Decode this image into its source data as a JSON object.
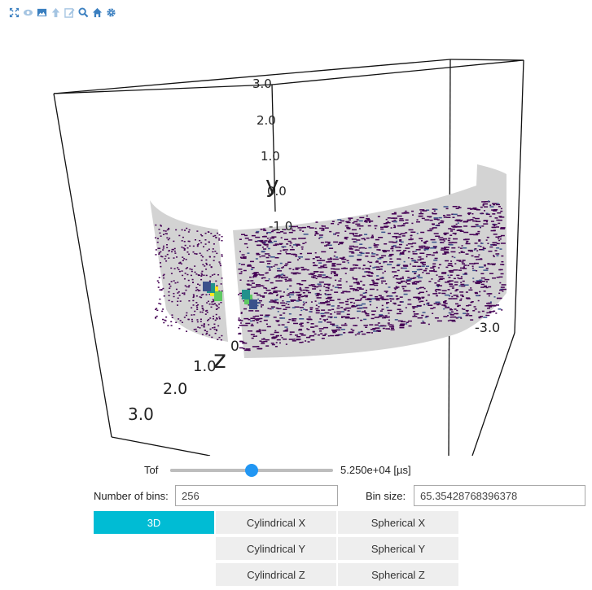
{
  "toolbar": {
    "icons": [
      "fullscreen-icon",
      "eye-icon",
      "image-icon",
      "arrow-up-icon",
      "edit-icon",
      "zoom-icon",
      "home-icon",
      "gear-icon"
    ]
  },
  "scene": {
    "axes": {
      "y": {
        "name": "y",
        "ticks": [
          "3.0",
          "2.0",
          "1.0",
          "0.0",
          "-1.0"
        ]
      },
      "z": {
        "name": "z",
        "ticks": [
          "0",
          "1.0",
          "2.0",
          "3.0"
        ]
      },
      "x": {
        "ticks": [
          "-3.0"
        ]
      }
    },
    "panel_color": "#d3d3d3",
    "colormap": [
      "#440154",
      "#3b528b",
      "#21918c",
      "#5ec962",
      "#fde725"
    ]
  },
  "controls": {
    "tof": {
      "label": "Tof",
      "value_text": "5.250e+04 [µs]",
      "slider_fraction": 0.5,
      "accent": "#2196f3"
    },
    "bins": {
      "label": "Number of bins:",
      "value": "256"
    },
    "bin_size": {
      "label": "Bin size:",
      "value": "65.35428768396378"
    },
    "buttons": {
      "b3d": "3D",
      "cyl_x": "Cylindrical X",
      "cyl_y": "Cylindrical Y",
      "cyl_z": "Cylindrical Z",
      "sph_x": "Spherical X",
      "sph_y": "Spherical Y",
      "sph_z": "Spherical Z",
      "active": "3D",
      "active_color": "#00bcd4"
    }
  }
}
